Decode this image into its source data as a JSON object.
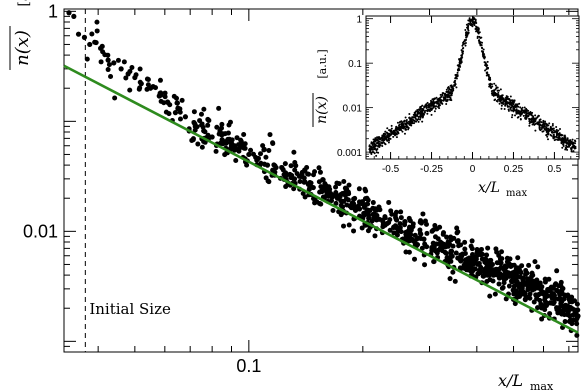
{
  "chart_data": [
    {
      "type": "scatter",
      "title": "",
      "xlabel": "x/L_max",
      "ylabel": "n(x) [a.u.]",
      "xscale": "log",
      "yscale": "log",
      "xlim": [
        0.0325,
        0.74
      ],
      "ylim": [
        0.0008,
        1.05
      ],
      "xticks": [
        0.1
      ],
      "xtick_labels": [
        "0.1"
      ],
      "yticks": [
        0.01,
        1
      ],
      "ytick_labels": [
        "0.01",
        "1"
      ],
      "grid": false,
      "annotations": [
        {
          "text": "Initial Size",
          "x": 0.037
        }
      ],
      "vertical_line_x": 0.037,
      "points_note": "dense scatter following a power-law decay from ~1 at x≈0.033 to ~0.0012 at x≈0.74",
      "series": [
        {
          "kind": "points",
          "color": "#000000",
          "x": [
            0.0335,
            0.0345,
            0.0355,
            0.0368,
            0.038,
            0.0395,
            0.041,
            0.0425,
            0.044,
            0.046,
            0.048,
            0.05,
            0.052,
            0.055,
            0.058,
            0.061,
            0.064,
            0.068,
            0.072,
            0.076,
            0.08,
            0.085,
            0.09,
            0.095,
            0.1,
            0.106,
            0.112,
            0.118,
            0.125,
            0.132,
            0.14,
            0.148,
            0.156,
            0.165,
            0.175,
            0.185,
            0.196,
            0.207,
            0.219,
            0.232,
            0.245,
            0.26,
            0.275,
            0.29,
            0.307,
            0.325,
            0.343,
            0.363,
            0.384,
            0.406,
            0.43,
            0.455,
            0.48,
            0.508,
            0.537,
            0.568,
            0.6,
            0.635,
            0.67,
            0.71,
            0.74
          ],
          "y": [
            0.97,
            0.9,
            0.62,
            0.58,
            0.5,
            0.52,
            0.48,
            0.36,
            0.34,
            0.3,
            0.27,
            0.25,
            0.22,
            0.2,
            0.17,
            0.15,
            0.12,
            0.11,
            0.095,
            0.082,
            0.072,
            0.068,
            0.06,
            0.058,
            0.05,
            0.046,
            0.04,
            0.038,
            0.034,
            0.03,
            0.028,
            0.025,
            0.023,
            0.021,
            0.019,
            0.017,
            0.016,
            0.014,
            0.013,
            0.0118,
            0.011,
            0.0098,
            0.0092,
            0.0085,
            0.0078,
            0.0072,
            0.0066,
            0.0061,
            0.0056,
            0.0051,
            0.0047,
            0.0043,
            0.004,
            0.0036,
            0.0033,
            0.003,
            0.0027,
            0.0025,
            0.0023,
            0.002,
            0.0017
          ]
        },
        {
          "kind": "fit-line",
          "color": "#2e8b1e",
          "x": [
            0.0325,
            0.74
          ],
          "y": [
            0.32,
            0.0012
          ]
        }
      ]
    },
    {
      "type": "scatter",
      "title": "",
      "xlabel": "x/L_max",
      "ylabel": "n(x) [a.u.]",
      "yscale": "log",
      "xlim": [
        -0.65,
        0.65
      ],
      "ylim": [
        0.0007,
        1.15
      ],
      "xticks": [
        -0.5,
        -0.25,
        0,
        0.25,
        0.5
      ],
      "xtick_labels": [
        "-0.5",
        "-0.25",
        "0",
        "0.25",
        "0.5"
      ],
      "yticks": [
        0.001,
        0.01,
        0.1,
        1
      ],
      "ytick_labels": [
        "0.001",
        "0.01",
        "0.1",
        "1"
      ],
      "grid": false,
      "points_note": "symmetric peaked profile centered at 0",
      "series": [
        {
          "kind": "points",
          "color": "#000000",
          "peak_x": 0.0,
          "peak_y": 1.0
        }
      ]
    }
  ]
}
